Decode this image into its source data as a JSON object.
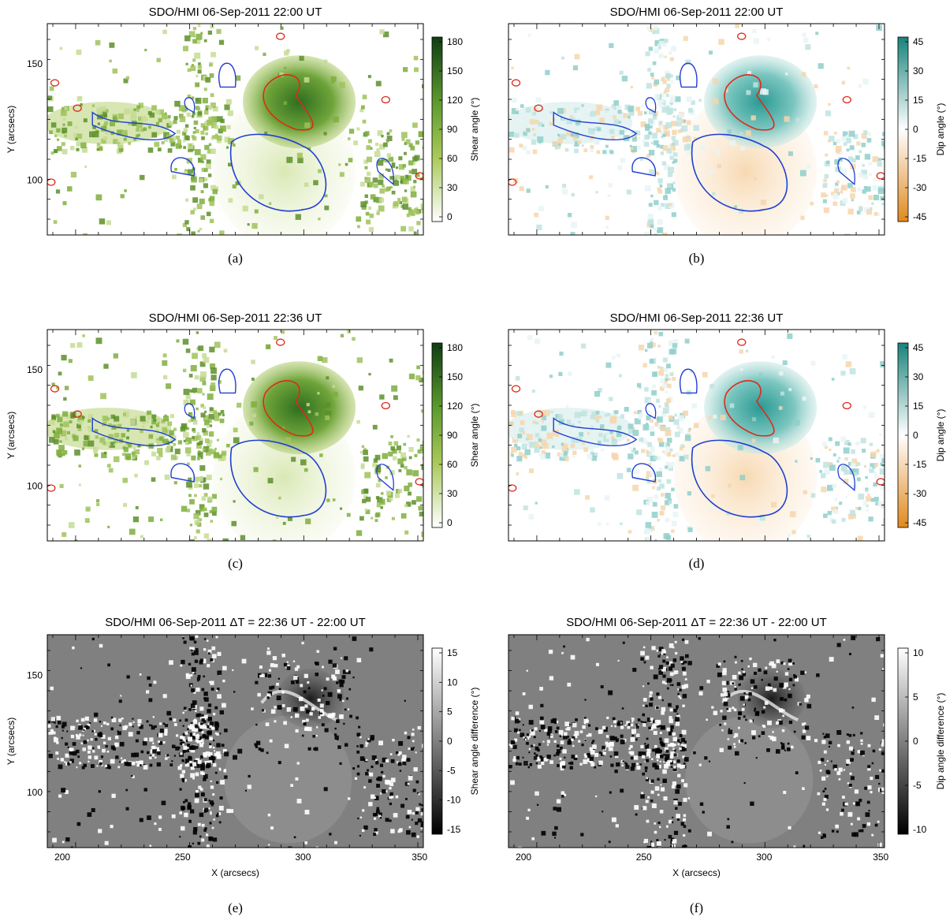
{
  "figure": {
    "panels": [
      {
        "id": "a",
        "caption": "(a)",
        "title": "SDO/HMI 06-Sep-2011 22:00 UT",
        "map": "shear",
        "contours": true,
        "ylabel": "Y (arcsecs)",
        "xlabel": "",
        "y_ticks": [
          "150",
          "100"
        ],
        "x_ticks": [],
        "colorbar": {
          "label": "Shear angle (°)",
          "ticks": [
            "180",
            "150",
            "120",
            "90",
            "60",
            "30",
            "0"
          ],
          "colors": [
            "#ffffff",
            "#8fb63a",
            "#1f5e1f"
          ]
        }
      },
      {
        "id": "b",
        "caption": "(b)",
        "title": "SDO/HMI 06-Sep-2011 22:00 UT",
        "map": "dip",
        "contours": true,
        "ylabel": "",
        "xlabel": "",
        "y_ticks": [],
        "x_ticks": [],
        "colorbar": {
          "label": "Dip angle (°)",
          "ticks": [
            "45",
            "30",
            "15",
            "0",
            "-15",
            "-30",
            "-45"
          ],
          "colors": [
            "#e08a1e",
            "#ffffff",
            "#1a7f7a"
          ]
        }
      },
      {
        "id": "c",
        "caption": "(c)",
        "title": "SDO/HMI 06-Sep-2011 22:36 UT",
        "map": "shear",
        "contours": true,
        "ylabel": "Y (arcsecs)",
        "xlabel": "",
        "y_ticks": [
          "150",
          "100"
        ],
        "x_ticks": [],
        "colorbar": {
          "label": "Shear angle (°)",
          "ticks": [
            "180",
            "150",
            "120",
            "90",
            "60",
            "30",
            "0"
          ],
          "colors": [
            "#ffffff",
            "#8fb63a",
            "#1f5e1f"
          ]
        }
      },
      {
        "id": "d",
        "caption": "(d)",
        "title": "SDO/HMI 06-Sep-2011 22:36 UT",
        "map": "dip",
        "contours": true,
        "ylabel": "",
        "xlabel": "",
        "y_ticks": [],
        "x_ticks": [],
        "colorbar": {
          "label": "Dip angle (°)",
          "ticks": [
            "45",
            "30",
            "15",
            "0",
            "-15",
            "-30",
            "-45"
          ],
          "colors": [
            "#e08a1e",
            "#ffffff",
            "#1a7f7a"
          ]
        }
      },
      {
        "id": "e",
        "caption": "(e)",
        "title": "SDO/HMI 06-Sep-2011  ΔT = 22:36 UT - 22:00 UT",
        "map": "diff",
        "contours": false,
        "ylabel": "Y (arcsecs)",
        "xlabel": "X (arcsecs)",
        "y_ticks": [
          "150",
          "100"
        ],
        "x_ticks": [
          "200",
          "250",
          "300",
          "350"
        ],
        "colorbar": {
          "label": "Shear angle difference (°)",
          "ticks": [
            "15",
            "10",
            "5",
            "0",
            "-5",
            "-10",
            "-15"
          ],
          "colors": [
            "#000000",
            "#808080",
            "#ffffff"
          ]
        }
      },
      {
        "id": "f",
        "caption": "(f)",
        "title": "SDO/HMI 06-Sep-2011  ΔT = 22:36 UT - 22:00 UT",
        "map": "diff",
        "contours": false,
        "ylabel": "",
        "xlabel": "X (arcsecs)",
        "y_ticks": [],
        "x_ticks": [
          "200",
          "250",
          "300",
          "350"
        ],
        "colorbar": {
          "label": "Dip angle difference (°)",
          "ticks": [
            "10",
            "5",
            "0",
            "-5",
            "-10"
          ],
          "colors": [
            "#000000",
            "#808080",
            "#ffffff"
          ]
        }
      }
    ]
  }
}
